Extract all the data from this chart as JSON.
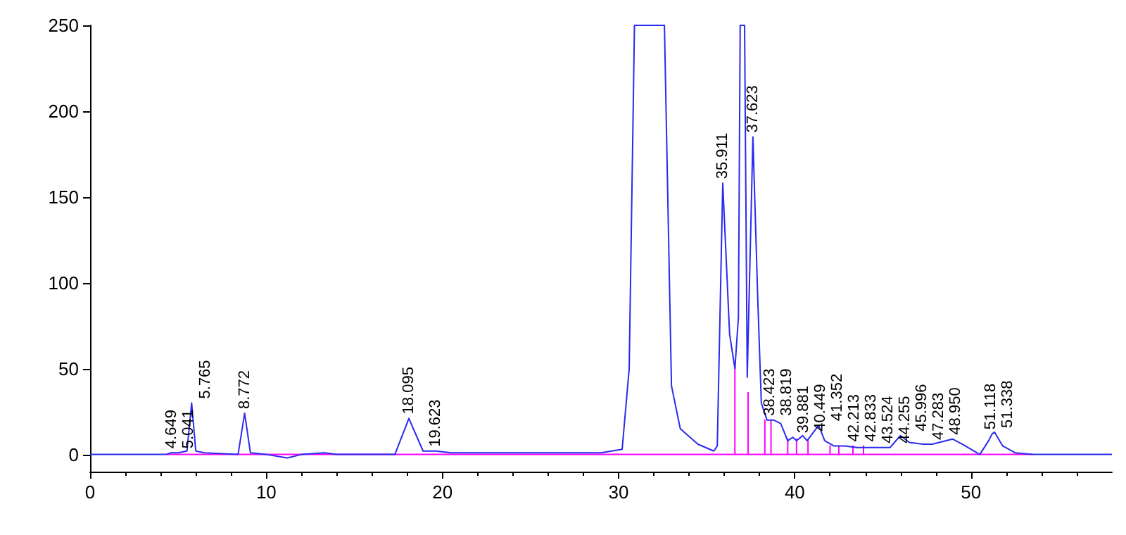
{
  "chart_data": {
    "type": "line",
    "xlim": [
      0,
      58
    ],
    "ylim": [
      -10,
      250
    ],
    "xticks": [
      0,
      10,
      20,
      30,
      40,
      50
    ],
    "yticks": [
      0,
      50,
      100,
      150,
      200,
      250
    ],
    "grid": false,
    "marker": "none",
    "series": [
      {
        "color": "#2a2af0",
        "x": [
          0,
          4.3,
          4.6,
          5.0,
          5.5,
          5.765,
          6.0,
          6.5,
          8.4,
          8.772,
          9.1,
          10,
          11.2,
          12,
          13.3,
          14,
          17.3,
          18.095,
          18.9,
          19.623,
          20.5,
          25,
          29,
          30.2,
          30.6,
          30.9,
          32.6,
          33,
          33.5,
          34.5,
          35.4,
          35.6,
          35.911,
          36.3,
          36.6,
          36.8,
          36.9,
          37.15,
          37.3,
          37.623,
          37.9,
          38.1,
          38.423,
          38.819,
          39.2,
          39.6,
          39.881,
          40.1,
          40.449,
          40.7,
          41.352,
          41.7,
          42.213,
          42.833,
          43.524,
          44.255,
          45.2,
          45.4,
          45.996,
          46.5,
          47.283,
          47.8,
          48.95,
          49.5,
          50.5,
          51.0,
          51.2,
          51.338,
          51.8,
          52.5,
          53.5,
          58
        ],
        "values": [
          0,
          0,
          1,
          1,
          2,
          30,
          2,
          1,
          0,
          24,
          1,
          0,
          -2,
          0,
          1,
          0,
          0,
          21,
          2,
          2,
          1,
          1,
          1,
          3,
          50,
          250,
          250,
          40,
          15,
          6,
          2,
          5,
          158,
          70,
          50,
          80,
          250,
          250,
          45,
          185,
          90,
          30,
          20,
          20,
          18,
          8,
          10,
          8,
          11,
          8,
          17,
          8,
          5,
          5,
          4,
          4,
          4,
          4,
          11,
          7,
          6,
          6,
          9,
          6,
          0,
          8,
          12,
          13,
          5,
          1,
          0,
          0
        ]
      },
      {
        "color": "#ff00ff",
        "x": [
          4.3,
          20.5,
          30.2,
          36.6,
          36.6,
          36.6,
          37.35,
          37.35,
          37.35,
          38.3,
          38.3,
          38.3,
          38.65,
          38.65,
          38.65,
          39.6,
          39.6,
          39.6,
          40.1,
          40.1,
          40.1,
          40.75,
          40.75,
          40.75,
          42.0,
          42.0,
          42.0,
          42.5,
          42.5,
          42.5,
          43.3,
          43.3,
          43.3,
          43.9,
          43.9,
          43.9,
          53.5
        ],
        "values": [
          0,
          0,
          0,
          0,
          53,
          0,
          0,
          36,
          0,
          0,
          20,
          0,
          0,
          20,
          0,
          0,
          9,
          0,
          0,
          9,
          0,
          0,
          8,
          0,
          0,
          5,
          0,
          0,
          5,
          0,
          0,
          5,
          0,
          0,
          5,
          0,
          0
        ]
      }
    ],
    "annotations": [
      {
        "text": "4.649",
        "x": 4.649,
        "y": 1
      },
      {
        "text": "5.041",
        "x": 5.041,
        "y": 1
      },
      {
        "text": "5.765",
        "x": 5.765,
        "y": 30
      },
      {
        "text": "8.772",
        "x": 8.772,
        "y": 24
      },
      {
        "text": "18.095",
        "x": 18.095,
        "y": 21
      },
      {
        "text": "19.623",
        "x": 19.623,
        "y": 2
      },
      {
        "text": "35.911",
        "x": 35.911,
        "y": 158
      },
      {
        "text": "37.623",
        "x": 37.623,
        "y": 185
      },
      {
        "text": "38.423",
        "x": 38.423,
        "y": 20
      },
      {
        "text": "38.819",
        "x": 38.819,
        "y": 20
      },
      {
        "text": "39.881",
        "x": 39.881,
        "y": 10
      },
      {
        "text": "40.449",
        "x": 40.449,
        "y": 11
      },
      {
        "text": "41.352",
        "x": 41.352,
        "y": 17
      },
      {
        "text": "42.213",
        "x": 42.213,
        "y": 5
      },
      {
        "text": "42.833",
        "x": 42.833,
        "y": 5
      },
      {
        "text": "43.524",
        "x": 43.524,
        "y": 4
      },
      {
        "text": "44.255",
        "x": 44.255,
        "y": 4
      },
      {
        "text": "45.996",
        "x": 45.996,
        "y": 11
      },
      {
        "text": "47.283",
        "x": 47.283,
        "y": 6
      },
      {
        "text": "48.950",
        "x": 48.95,
        "y": 9
      },
      {
        "text": "51.118",
        "x": 51.118,
        "y": 12
      },
      {
        "text": "51.338",
        "x": 51.338,
        "y": 13
      }
    ]
  }
}
